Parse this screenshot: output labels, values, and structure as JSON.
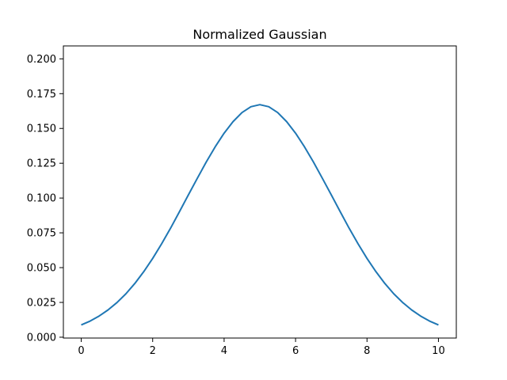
{
  "chart_data": {
    "type": "line",
    "title": "Normalized Gaussian",
    "xlabel": "",
    "ylabel": "",
    "xlim": [
      -0.5,
      10.5
    ],
    "ylim": [
      -0.0006,
      0.2093
    ],
    "xticks": [
      0,
      2,
      4,
      6,
      8,
      10
    ],
    "xtick_labels": [
      "0",
      "2",
      "4",
      "6",
      "8",
      "10"
    ],
    "yticks": [
      0.0,
      0.025,
      0.05,
      0.075,
      0.1,
      0.125,
      0.15,
      0.175,
      0.2
    ],
    "ytick_labels": [
      "0.000",
      "0.025",
      "0.050",
      "0.075",
      "0.100",
      "0.125",
      "0.150",
      "0.175",
      "0.200"
    ],
    "grid": false,
    "legend": "none",
    "series_color": "#1f77b4",
    "series": [
      {
        "x": [
          0,
          0.25,
          0.5,
          0.75,
          1,
          1.25,
          1.5,
          1.75,
          2,
          2.25,
          2.5,
          2.75,
          3,
          3.25,
          3.5,
          3.75,
          4,
          4.25,
          4.5,
          4.75,
          5,
          5.25,
          5.5,
          5.75,
          6,
          6.25,
          6.5,
          6.75,
          7,
          7.25,
          7.5,
          7.75,
          8,
          8.25,
          8.5,
          8.75,
          9,
          9.25,
          9.5,
          9.75,
          10
        ],
        "y": [
          0.0088,
          0.0116,
          0.0152,
          0.0196,
          0.0249,
          0.0312,
          0.0386,
          0.0471,
          0.0566,
          0.0671,
          0.0783,
          0.0902,
          0.1023,
          0.1142,
          0.1259,
          0.1368,
          0.1466,
          0.1549,
          0.1614,
          0.1656,
          0.1671,
          0.1656,
          0.1614,
          0.1549,
          0.1466,
          0.1368,
          0.1259,
          0.1142,
          0.1023,
          0.0902,
          0.0783,
          0.0671,
          0.0566,
          0.0471,
          0.0386,
          0.0312,
          0.0249,
          0.0196,
          0.0152,
          0.0116,
          0.0088
        ]
      }
    ]
  }
}
